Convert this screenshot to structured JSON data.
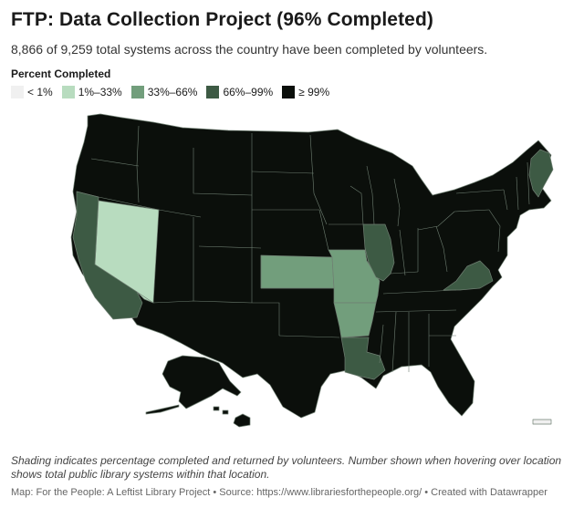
{
  "header": {
    "title": "FTP: Data Collection Project (96% Completed)",
    "subtitle": "8,866 of 9,259 total systems across the country have been completed by volunteers."
  },
  "legend": {
    "title": "Percent Completed",
    "items": [
      {
        "label": "< 1%",
        "color": "#f0f0f0"
      },
      {
        "label": "1%–33%",
        "color": "#b8dcbf"
      },
      {
        "label": "33%–66%",
        "color": "#729e7c"
      },
      {
        "label": "66%–99%",
        "color": "#3d5a44"
      },
      {
        "label": "≥ 99%",
        "color": "#0b0f0b"
      }
    ]
  },
  "map": {
    "state_categories": {
      "nevada": "1%–33%",
      "california": "66%–99%",
      "maine": "66%–99%",
      "illinois": "66%–99%",
      "louisiana": "66%–99%",
      "virginia": "66%–99%",
      "kansas": "33%–66%",
      "missouri": "33%–66%",
      "arkansas": "33%–66%",
      "puerto_rico": "< 1%",
      "all_other_states": "≥ 99%"
    }
  },
  "footer": {
    "notes": "Shading indicates percentage completed and returned by volunteers. Number shown when hovering over location shows total public library systems within that location.",
    "source": "Map: For the People: A Leftist Library Project • Source: https://www.librariesforthepeople.org/ • Created with Datawrapper"
  }
}
